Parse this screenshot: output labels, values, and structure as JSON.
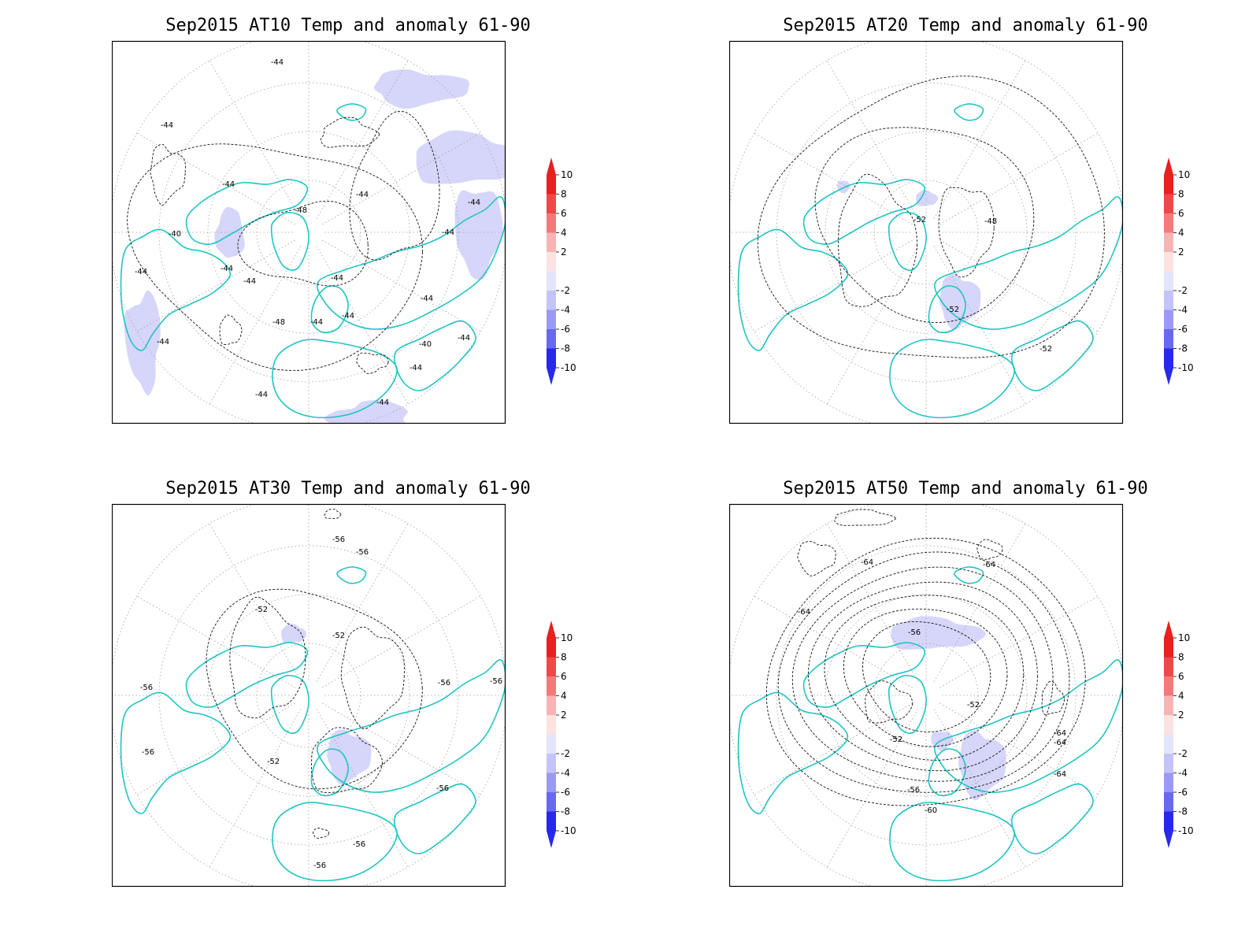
{
  "panels": [
    {
      "title": "Sep2015 AT10 Temp and anomaly 61-90",
      "contour_labels": [
        "-44",
        "-44",
        "-44",
        "-44",
        "-44",
        "-40",
        "-44",
        "-44",
        "-48",
        "-44",
        "-44",
        "-44",
        "-48",
        "-44",
        "-44",
        "-44",
        "-44",
        "-44",
        "-44",
        "-40",
        "-44",
        "-44"
      ]
    },
    {
      "title": "Sep2015 AT20 Temp and anomaly 61-90",
      "contour_labels": [
        "-52",
        "-48",
        "-52",
        "-52"
      ]
    },
    {
      "title": "Sep2015 AT30 Temp and anomaly 61-90",
      "contour_labels": [
        "-56",
        "-56",
        "-56",
        "-56",
        "-52",
        "-52",
        "-52",
        "-56",
        "-56",
        "-56",
        "-56",
        "-56"
      ]
    },
    {
      "title": "Sep2015 AT50 Temp and anomaly 61-90",
      "contour_labels": [
        "-64",
        "-64",
        "-64",
        "-64",
        "-56",
        "-52",
        "-52",
        "-64",
        "-64",
        "-56",
        "-60"
      ]
    }
  ],
  "colorbar": {
    "labels": [
      "10",
      "8",
      "6",
      "4",
      "2",
      "-2",
      "-4",
      "-6",
      "-8",
      "-10"
    ],
    "colors": [
      "#e8201e",
      "#f04848",
      "#f47a7a",
      "#f8b4b4",
      "#fde2e2",
      "#e4e4fc",
      "#c4c4f8",
      "#9a9af4",
      "#6868f0",
      "#2828ec"
    ]
  },
  "styles": {
    "coast_color": "#20c4c4",
    "anomaly_fill": "#d6d6fa",
    "graticule_color": "#a0a0a0",
    "contour_color": "#111111"
  }
}
